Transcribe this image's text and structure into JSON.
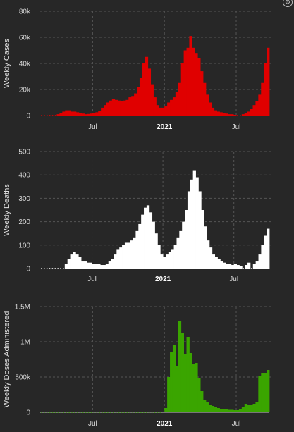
{
  "icons": {
    "corner": "gear-icon"
  },
  "chart_data": [
    {
      "type": "bar",
      "name": "weekly-cases",
      "ylabel": "Weekly Cases",
      "color": "#e00000",
      "ylim": [
        0,
        80000
      ],
      "yticks": [
        0,
        20000,
        40000,
        60000,
        80000
      ],
      "ytick_labels": [
        "0",
        "20k",
        "40k",
        "60k",
        "80k"
      ],
      "x_ticks": [
        {
          "index": 19,
          "label": "Jul",
          "bold": false
        },
        {
          "index": 45,
          "label": "2021",
          "bold": true
        },
        {
          "index": 71,
          "label": "Jul",
          "bold": false
        }
      ],
      "grid": true,
      "values": [
        0,
        0,
        0,
        0,
        0,
        0,
        1000,
        2000,
        3000,
        4000,
        4000,
        3000,
        3000,
        2500,
        2000,
        1500,
        1000,
        1200,
        1500,
        2000,
        2500,
        3500,
        6000,
        8000,
        10000,
        11500,
        12500,
        12000,
        11500,
        11000,
        11500,
        12000,
        14000,
        15000,
        17000,
        22000,
        29000,
        40000,
        45000,
        36000,
        24000,
        14000,
        8000,
        6000,
        6000,
        7000,
        10000,
        12000,
        14000,
        18000,
        25000,
        40000,
        50000,
        52000,
        61000,
        52000,
        48000,
        44000,
        34000,
        25000,
        16000,
        10000,
        6000,
        4000,
        3000,
        2500,
        2000,
        1500,
        1000,
        1000,
        500,
        0,
        0,
        1000,
        2000,
        3000,
        5000,
        8000,
        11000,
        16000,
        25000,
        40000,
        52000
      ]
    },
    {
      "type": "bar",
      "name": "weekly-deaths",
      "ylabel": "Weekly Deaths",
      "color": "#ffffff",
      "ylim": [
        0,
        500
      ],
      "yticks": [
        0,
        100,
        200,
        300,
        400,
        500
      ],
      "ytick_labels": [
        "0",
        "100",
        "200",
        "300",
        "400",
        "500"
      ],
      "x_ticks": [
        {
          "index": 19,
          "label": "Jul",
          "bold": false
        },
        {
          "index": 45,
          "label": "2021",
          "bold": true
        },
        {
          "index": 71,
          "label": "Jul",
          "bold": false
        }
      ],
      "grid": true,
      "values": [
        0,
        0,
        0,
        0,
        0,
        0,
        0,
        0,
        0,
        20,
        40,
        60,
        70,
        60,
        50,
        30,
        30,
        25,
        25,
        20,
        20,
        20,
        15,
        15,
        20,
        30,
        40,
        60,
        80,
        90,
        100,
        110,
        110,
        120,
        130,
        160,
        190,
        230,
        260,
        270,
        240,
        200,
        150,
        100,
        60,
        50,
        60,
        70,
        80,
        100,
        130,
        160,
        200,
        250,
        330,
        380,
        420,
        390,
        330,
        250,
        180,
        120,
        90,
        60,
        50,
        40,
        30,
        25,
        20,
        20,
        15,
        20,
        15,
        10,
        0,
        15,
        25,
        0,
        20,
        30,
        60,
        100,
        140,
        170
      ]
    },
    {
      "type": "bar",
      "name": "weekly-doses-administered",
      "ylabel": "Weekly Doses Administered",
      "color": "#3aa500",
      "ylim": [
        0,
        1500000
      ],
      "yticks": [
        0,
        500000,
        1000000,
        1500000
      ],
      "ytick_labels": [
        "0",
        "500k",
        "1M",
        "1.5M"
      ],
      "x_ticks": [
        {
          "index": 19,
          "label": "Jul",
          "bold": false
        },
        {
          "index": 45,
          "label": "2021",
          "bold": true
        },
        {
          "index": 71,
          "label": "Jul",
          "bold": false
        }
      ],
      "grid": true,
      "values": [
        0,
        0,
        0,
        0,
        0,
        0,
        0,
        0,
        0,
        0,
        0,
        0,
        0,
        0,
        0,
        0,
        0,
        0,
        0,
        0,
        0,
        0,
        0,
        0,
        0,
        0,
        0,
        0,
        0,
        0,
        0,
        0,
        0,
        0,
        0,
        0,
        0,
        0,
        0,
        0,
        0,
        0,
        0,
        0,
        10000,
        60000,
        500000,
        850000,
        960000,
        650000,
        1300000,
        1120000,
        830000,
        1070000,
        840000,
        680000,
        700000,
        480000,
        300000,
        180000,
        150000,
        110000,
        90000,
        70000,
        60000,
        50000,
        40000,
        40000,
        35000,
        35000,
        30000,
        30000,
        50000,
        80000,
        120000,
        110000,
        100000,
        120000,
        150000,
        520000,
        560000,
        560000,
        600000
      ]
    }
  ]
}
